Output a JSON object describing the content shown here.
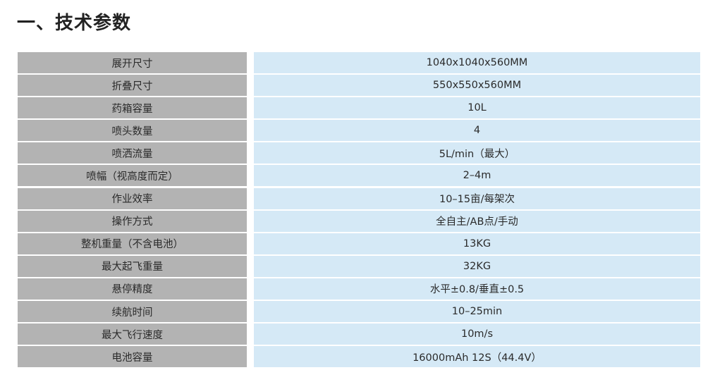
{
  "title": "一、技术参数",
  "colors": {
    "label_bg": "#b3b3b3",
    "value_bg": "#d5e9f6"
  },
  "rows": [
    {
      "label": "展开尺寸",
      "value": "1040x1040x560MM"
    },
    {
      "label": "折叠尺寸",
      "value": "550x550x560MM"
    },
    {
      "label": "药箱容量",
      "value": "10L"
    },
    {
      "label": "喷头数量",
      "value": "4"
    },
    {
      "label": "喷洒流量",
      "value": "5L/min（最大）"
    },
    {
      "label": "喷幅（视高度而定）",
      "value": "2–4m"
    },
    {
      "label": "作业效率",
      "value": "10–15亩/每架次"
    },
    {
      "label": "操作方式",
      "value": "全自主/AB点/手动"
    },
    {
      "label": "整机重量（不含电池）",
      "value": "13KG"
    },
    {
      "label": "最大起飞重量",
      "value": "32KG"
    },
    {
      "label": "悬停精度",
      "value": "水平±0.8/垂直±0.5"
    },
    {
      "label": "续航时间",
      "value": "10–25min"
    },
    {
      "label": "最大飞行速度",
      "value": "10m/s"
    },
    {
      "label": "电池容量",
      "value": "16000mAh 12S（44.4V）"
    }
  ]
}
